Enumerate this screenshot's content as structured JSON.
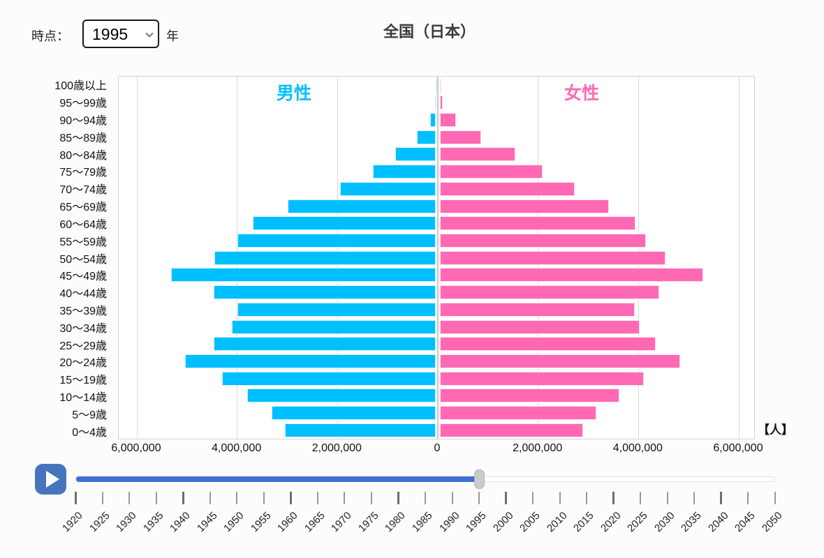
{
  "header": {
    "time_label": "時点：",
    "year_select_value": "1995",
    "year_suffix": "年",
    "title": "全国（日本）"
  },
  "chart_data": {
    "type": "bar",
    "subtype": "population-pyramid",
    "title": "全国（日本）",
    "unit_label": "【人】",
    "legend": {
      "male": "男性",
      "female": "女性"
    },
    "colors": {
      "male": "#00bfff",
      "female": "#ff69b4",
      "slider_fill": "#3e6fd3",
      "play_button": "#4576bd"
    },
    "axis": {
      "max": 6000000,
      "gridline_step": 2000000,
      "tick_labels": [
        "6,000,000",
        "4,000,000",
        "2,000,000",
        "0",
        "2,000,000",
        "4,000,000",
        "6,000,000"
      ]
    },
    "categories": [
      "100歳以上",
      "95〜99歳",
      "90〜94歳",
      "85〜89歳",
      "80〜84歳",
      "75〜79歳",
      "70〜74歳",
      "65〜69歳",
      "60〜64歳",
      "55〜59歳",
      "50〜54歳",
      "45〜49歳",
      "40〜44歳",
      "35〜39歳",
      "30〜34歳",
      "25〜29歳",
      "20〜24歳",
      "15〜19歳",
      "10〜14歳",
      "5〜9歳",
      "0〜4歳"
    ],
    "series": [
      {
        "name": "男性",
        "side": "left",
        "values": [
          1256,
          20415,
          117246,
          388995,
          819869,
          1255082,
          1911966,
          2952190,
          3648196,
          3954537,
          4419977,
          5281892,
          4427348,
          3959174,
          4068253,
          4437094,
          5008566,
          4272761,
          3760469,
          3276418,
          3012243
        ]
      },
      {
        "name": "女性",
        "side": "right",
        "values": [
          5123,
          67225,
          322420,
          834172,
          1505083,
          2059741,
          2693971,
          3378569,
          3909738,
          4108723,
          4502089,
          5257807,
          4377801,
          3886480,
          3982385,
          4311841,
          4801559,
          4069385,
          3578223,
          3122093,
          2865697
        ]
      }
    ]
  },
  "timeline": {
    "current_year": "1995",
    "min_year": 1920,
    "max_year": 2050,
    "step_years": 5,
    "years": [
      "1920",
      "1925",
      "1930",
      "1935",
      "1940",
      "1945",
      "1950",
      "1955",
      "1960",
      "1965",
      "1970",
      "1975",
      "1980",
      "1985",
      "1990",
      "1995",
      "2000",
      "2005",
      "2010",
      "2015",
      "2020",
      "2025",
      "2030",
      "2035",
      "2040",
      "2045",
      "2050"
    ]
  }
}
